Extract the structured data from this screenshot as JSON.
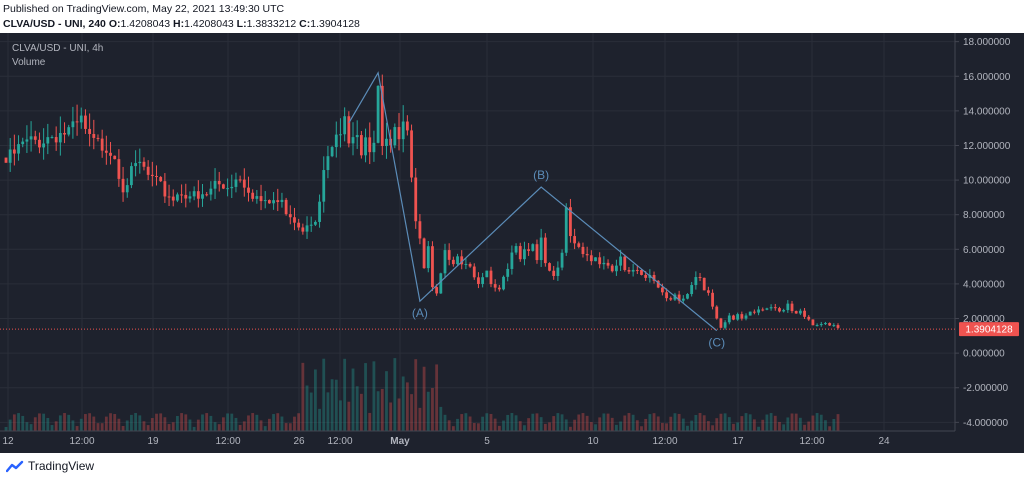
{
  "header": {
    "published": "Published on TradingView.com, May 22, 2021 13:49:30 UTC",
    "symbol_line": "CLVA/USD - UNI, 240",
    "ohlc": [
      {
        "k": "O:",
        "v": "1.4208043"
      },
      {
        "k": "H:",
        "v": "1.4208043"
      },
      {
        "k": "L:",
        "v": "1.3833212"
      },
      {
        "k": "C:",
        "v": "1.3904128"
      }
    ]
  },
  "legend": {
    "symbol": "CLVA/USD - UNI, 4h",
    "volume": "Volume"
  },
  "footer": {
    "brand": "TradingView"
  },
  "colors": {
    "up": "#26a69a",
    "down": "#ef5350",
    "line": "#5b8cb8",
    "bg": "#1e222d",
    "grid": "#2a2e39",
    "text": "#b2b5be"
  },
  "chart_data": {
    "type": "candlestick",
    "y_range": [
      -4.5,
      18.5
    ],
    "y_ticks": [
      "18.000000",
      "16.000000",
      "14.000000",
      "12.000000",
      "10.000000",
      "8.000000",
      "6.000000",
      "4.000000",
      "2.000000",
      "0.000000",
      "-2.000000",
      "-4.000000"
    ],
    "x_ticks": [
      "12",
      "12:00",
      "19",
      "12:00",
      "26",
      "12:00",
      "May",
      "5",
      "10",
      "12:00",
      "17",
      "12:00",
      "24"
    ],
    "last_price": "1.3904128",
    "price_path": [
      [
        0,
        11.0
      ],
      [
        4,
        12.0
      ],
      [
        8,
        12.3
      ],
      [
        12,
        12.7
      ],
      [
        16,
        12.8
      ],
      [
        18,
        13.3
      ],
      [
        20,
        12.2
      ],
      [
        22,
        12.0
      ],
      [
        24,
        12.1
      ],
      [
        26,
        11.5
      ],
      [
        27,
        10.6
      ],
      [
        28,
        9.7
      ],
      [
        30,
        10.3
      ],
      [
        32,
        10.9
      ],
      [
        34,
        10.2
      ],
      [
        36,
        9.7
      ],
      [
        38,
        9.3
      ],
      [
        40,
        9.0
      ],
      [
        42,
        9.4
      ],
      [
        44,
        9.2
      ],
      [
        46,
        8.8
      ],
      [
        48,
        9.1
      ],
      [
        50,
        9.8
      ],
      [
        52,
        9.6
      ],
      [
        54,
        9.9
      ],
      [
        56,
        10.3
      ],
      [
        58,
        9.6
      ],
      [
        60,
        9.0
      ],
      [
        62,
        8.5
      ],
      [
        64,
        8.8
      ],
      [
        66,
        8.6
      ],
      [
        68,
        8.1
      ],
      [
        70,
        7.5
      ],
      [
        71,
        7.2
      ],
      [
        72,
        7.7
      ],
      [
        74,
        7.9
      ],
      [
        75,
        8.5
      ],
      [
        76,
        10.5
      ],
      [
        77,
        11.0
      ],
      [
        78,
        11.8
      ],
      [
        79,
        12.6
      ],
      [
        80,
        12.2
      ],
      [
        81,
        13.4
      ],
      [
        82,
        12.7
      ],
      [
        84,
        13.2
      ],
      [
        85,
        11.8
      ],
      [
        86,
        12.8
      ],
      [
        87,
        12.0
      ],
      [
        88,
        12.5
      ],
      [
        89,
        15.5
      ],
      [
        90,
        11.5
      ],
      [
        91,
        12.3
      ],
      [
        92,
        11.7
      ],
      [
        93,
        12.6
      ],
      [
        94,
        11.9
      ],
      [
        95,
        12.9
      ],
      [
        96,
        12.3
      ],
      [
        97,
        10.6
      ],
      [
        98,
        8.0
      ],
      [
        99,
        6.8
      ],
      [
        100,
        5.1
      ],
      [
        101,
        6.2
      ],
      [
        102,
        4.0
      ],
      [
        103,
        3.6
      ],
      [
        104,
        4.5
      ],
      [
        105,
        5.7
      ],
      [
        106,
        5.3
      ],
      [
        107,
        5.0
      ],
      [
        108,
        5.4
      ],
      [
        109,
        4.9
      ],
      [
        110,
        5.1
      ],
      [
        112,
        4.6
      ],
      [
        113,
        4.2
      ],
      [
        114,
        4.5
      ],
      [
        115,
        4.9
      ],
      [
        116,
        4.1
      ],
      [
        117,
        3.8
      ],
      [
        118,
        3.8
      ],
      [
        119,
        4.2
      ],
      [
        120,
        4.8
      ],
      [
        121,
        5.6
      ],
      [
        122,
        5.9
      ],
      [
        123,
        5.4
      ],
      [
        124,
        6.0
      ],
      [
        125,
        5.7
      ],
      [
        126,
        6.2
      ],
      [
        127,
        5.6
      ],
      [
        128,
        6.7
      ],
      [
        129,
        5.4
      ],
      [
        130,
        4.9
      ],
      [
        131,
        4.5
      ],
      [
        132,
        5.0
      ],
      [
        133,
        6.1
      ],
      [
        134,
        8.2
      ],
      [
        135,
        6.5
      ],
      [
        136,
        6.3
      ],
      [
        137,
        5.9
      ],
      [
        138,
        5.5
      ],
      [
        139,
        5.6
      ],
      [
        140,
        5.2
      ],
      [
        141,
        5.6
      ],
      [
        142,
        5.2
      ],
      [
        144,
        5.3
      ],
      [
        145,
        4.8
      ],
      [
        146,
        5.1
      ],
      [
        147,
        5.6
      ],
      [
        148,
        4.9
      ],
      [
        149,
        4.6
      ],
      [
        150,
        4.6
      ],
      [
        151,
        4.8
      ],
      [
        152,
        4.5
      ],
      [
        153,
        4.2
      ],
      [
        154,
        4.4
      ],
      [
        155,
        4.0
      ],
      [
        156,
        3.8
      ],
      [
        157,
        3.6
      ],
      [
        158,
        3.3
      ],
      [
        159,
        3.2
      ],
      [
        160,
        3.4
      ],
      [
        161,
        3.1
      ],
      [
        162,
        3.3
      ],
      [
        163,
        3.5
      ],
      [
        164,
        3.9
      ],
      [
        165,
        4.3
      ],
      [
        166,
        4.2
      ],
      [
        167,
        3.5
      ],
      [
        168,
        3.4
      ],
      [
        169,
        2.6
      ],
      [
        170,
        2.0
      ],
      [
        171,
        1.5
      ],
      [
        172,
        1.8
      ],
      [
        173,
        2.2
      ],
      [
        174,
        2.0
      ],
      [
        175,
        2.3
      ],
      [
        176,
        2.1
      ],
      [
        178,
        2.4
      ],
      [
        179,
        2.3
      ],
      [
        180,
        2.4
      ],
      [
        182,
        2.5
      ],
      [
        184,
        2.6
      ],
      [
        185,
        2.4
      ],
      [
        186,
        2.5
      ],
      [
        187,
        2.9
      ],
      [
        188,
        2.5
      ],
      [
        189,
        2.4
      ],
      [
        190,
        2.5
      ],
      [
        191,
        2.2
      ],
      [
        192,
        2.0
      ],
      [
        193,
        1.6
      ],
      [
        194,
        1.5
      ],
      [
        195,
        1.6
      ],
      [
        196,
        1.7
      ],
      [
        197,
        1.5
      ],
      [
        198,
        1.6
      ],
      [
        199,
        1.4
      ]
    ],
    "wave": {
      "points": [
        [
          82,
          13.3
        ],
        [
          89,
          16.2
        ],
        [
          99,
          3.0
        ],
        [
          128,
          9.6
        ],
        [
          170,
          1.3
        ]
      ],
      "labels": [
        {
          "i": 2,
          "text": "(A)"
        },
        {
          "i": 3,
          "text": "(B)"
        },
        {
          "i": 4,
          "text": "(C)"
        }
      ]
    }
  }
}
